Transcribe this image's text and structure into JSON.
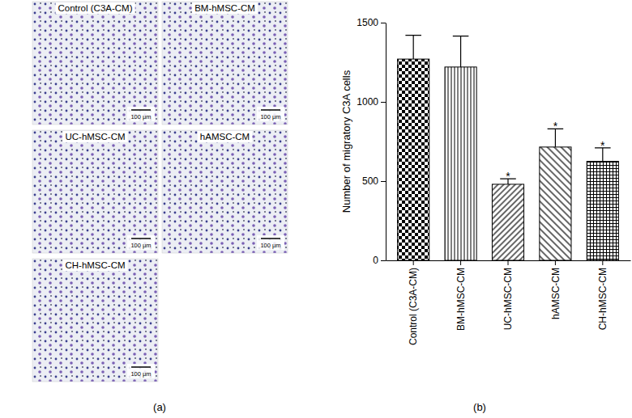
{
  "chart_data": {
    "type": "bar",
    "categories": [
      "Control (C3A-CM)",
      "BM-hMSC-CM",
      "UC-hMSC-CM",
      "hAMSC-CM",
      "CH-hMSC-CM"
    ],
    "values": [
      1270,
      1220,
      480,
      715,
      625
    ],
    "errors": [
      150,
      195,
      35,
      115,
      85
    ],
    "significance": [
      null,
      null,
      "*",
      "*",
      "*"
    ],
    "y_label": "Number of migratory C3A cells",
    "panel_label": "(b)",
    "color": "#000000",
    "ylim": [
      0,
      1500
    ],
    "yticks": [
      0,
      500,
      1000,
      1500
    ],
    "grid": false
  },
  "micrographs": {
    "panel_label": "(a)",
    "images": [
      {
        "title": "Control (C3A-CM)",
        "scale_bar": "100 μm"
      },
      {
        "title": "BM-hMSC-CM",
        "scale_bar": "100 μm"
      },
      {
        "title": "UC-hMSC-CM",
        "scale_bar": "100 μm"
      },
      {
        "title": "hAMSC-CM",
        "scale_bar": "100 μm"
      },
      {
        "title": "CH-hMSC-CM",
        "scale_bar": "100 μm"
      }
    ]
  }
}
